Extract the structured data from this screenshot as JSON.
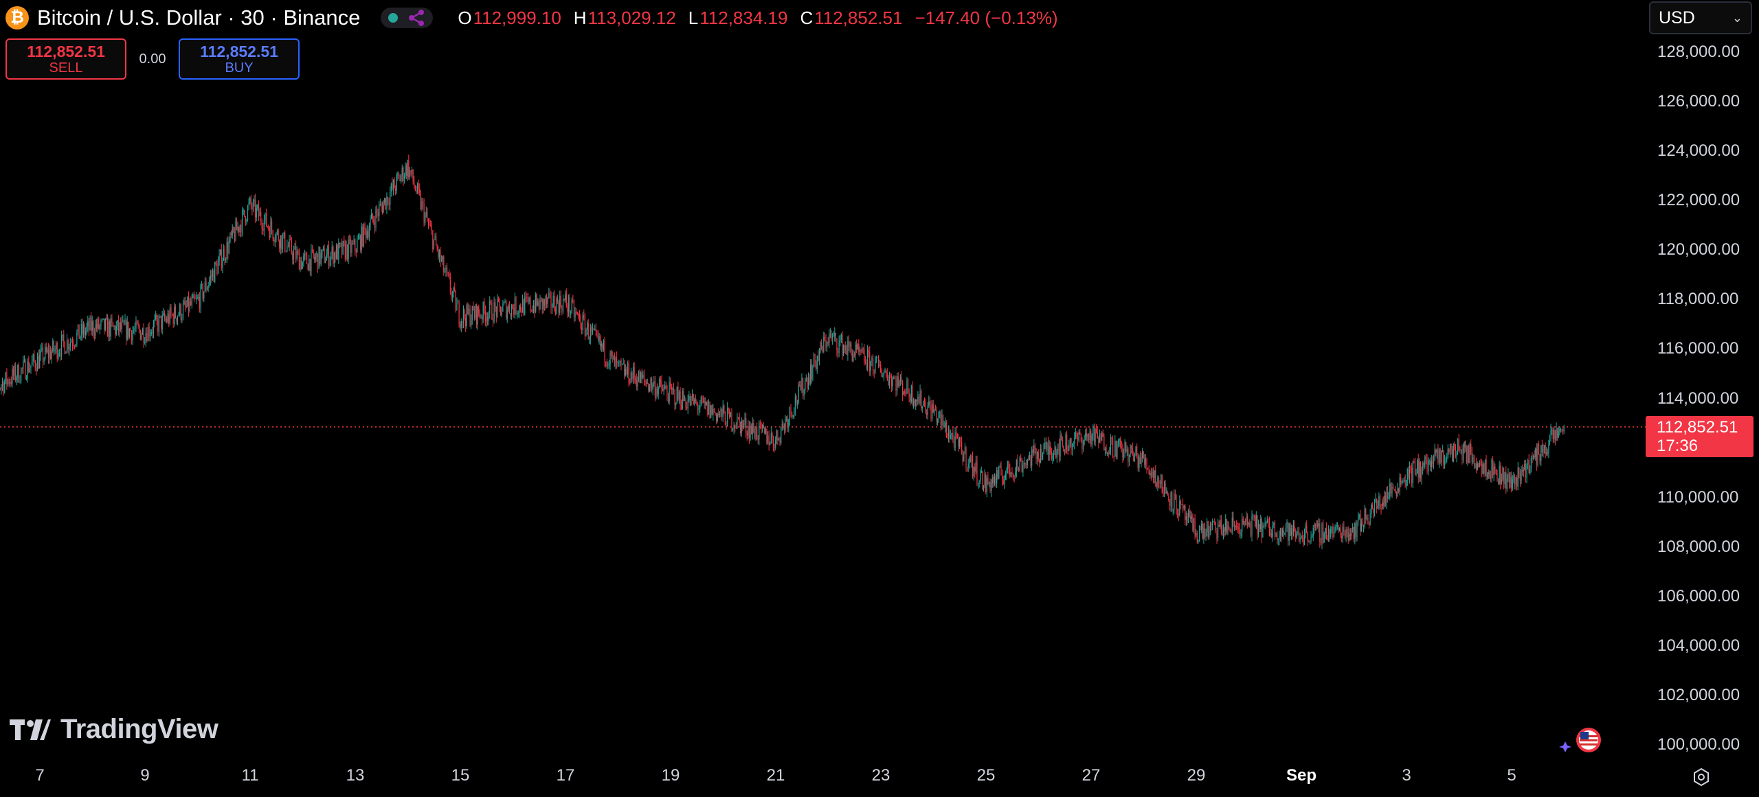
{
  "header": {
    "logo_icon": "bitcoin-logo-icon",
    "symbol_title": "Bitcoin / U.S. Dollar · 30 · Binance",
    "ohlc": {
      "o_label": "O",
      "o_value": "112,999.10",
      "h_label": "H",
      "h_value": "113,029.12",
      "l_label": "L",
      "l_value": "112,834.19",
      "c_label": "C",
      "c_value": "112,852.51",
      "change": "−147.40 (−0.13%)"
    }
  },
  "trade": {
    "sell_price": "112,852.51",
    "sell_label": "SELL",
    "spread": "0.00",
    "buy_price": "112,852.51",
    "buy_label": "BUY"
  },
  "currency": {
    "value": "USD"
  },
  "price_axis": {
    "ticks": [
      "128,000.00",
      "126,000.00",
      "124,000.00",
      "122,000.00",
      "120,000.00",
      "118,000.00",
      "116,000.00",
      "114,000.00",
      "110,000.00",
      "108,000.00",
      "106,000.00",
      "104,000.00",
      "102,000.00",
      "100,000.00"
    ],
    "current_price": "112,852.51",
    "countdown": "17:36"
  },
  "time_axis": {
    "ticks": [
      "7",
      "9",
      "11",
      "13",
      "15",
      "17",
      "19",
      "21",
      "23",
      "25",
      "27",
      "29",
      "Sep",
      "3",
      "5"
    ]
  },
  "branding": {
    "name": "TradingView"
  },
  "colors": {
    "up": "#26a69a",
    "down": "#f23645",
    "buy": "#2962ff",
    "background": "#000000"
  },
  "chart_data": {
    "type": "candlestick",
    "ylim": [
      100000,
      128000
    ],
    "last_price": 112852.51,
    "x_unit": "day",
    "x_range": [
      "Aug 6",
      "Sep 5"
    ],
    "x": [
      "Aug 6",
      "Aug 7",
      "Aug 8",
      "Aug 9",
      "Aug 10",
      "Aug 11",
      "Aug 12",
      "Aug 13",
      "Aug 14",
      "Aug 15",
      "Aug 16",
      "Aug 17",
      "Aug 18",
      "Aug 19",
      "Aug 20",
      "Aug 21",
      "Aug 22",
      "Aug 23",
      "Aug 24",
      "Aug 25",
      "Aug 26",
      "Aug 27",
      "Aug 28",
      "Aug 29",
      "Aug 30",
      "Aug 31",
      "Sep 1",
      "Sep 2",
      "Sep 3",
      "Sep 4",
      "Sep 5"
    ],
    "close": [
      114200,
      115600,
      116900,
      116700,
      117900,
      121800,
      119500,
      120100,
      123400,
      117300,
      117700,
      117900,
      115200,
      114200,
      113300,
      112300,
      116500,
      115200,
      113500,
      110500,
      111800,
      112500,
      111500,
      108600,
      108900,
      108500,
      108700,
      110900,
      112000,
      110600,
      112852
    ]
  }
}
